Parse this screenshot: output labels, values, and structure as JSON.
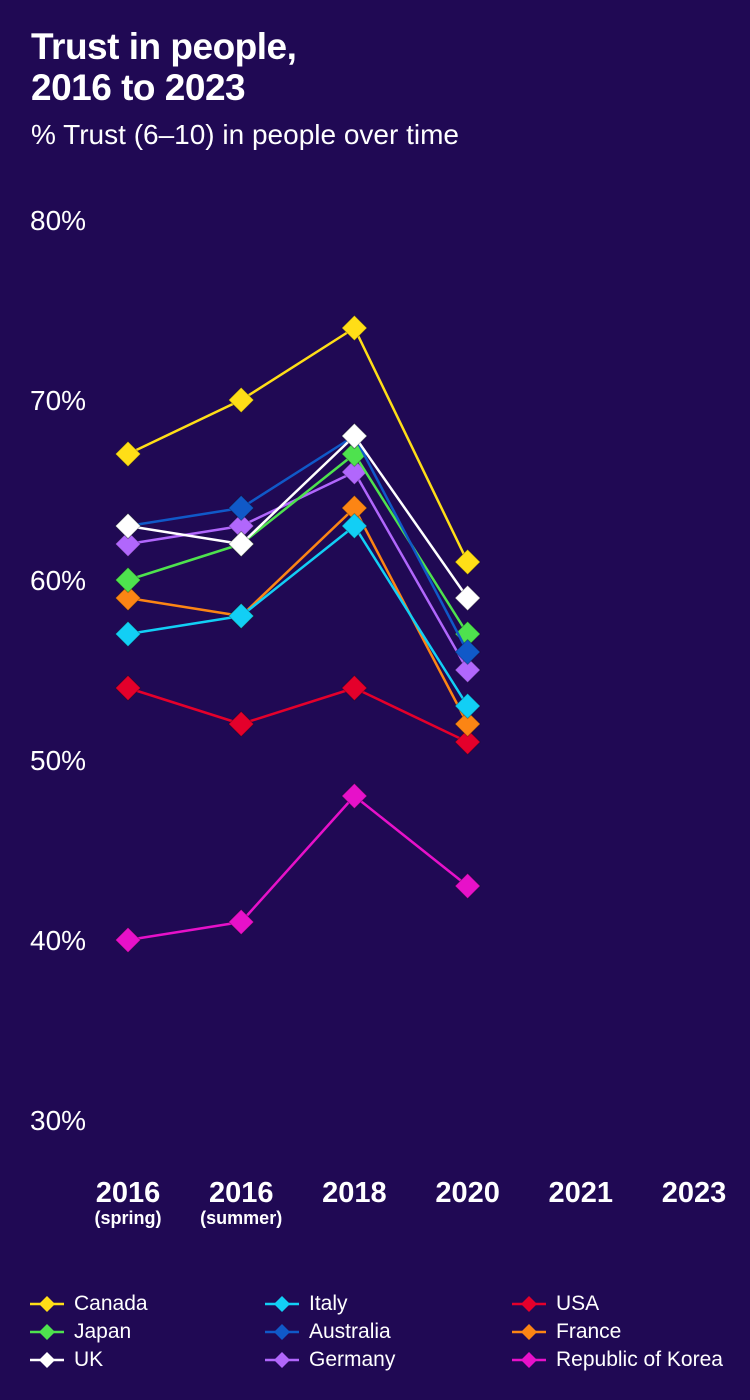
{
  "header": {
    "title_line1": "Trust in people,",
    "title_line2": "2016 to 2023",
    "subtitle": "% Trust (6–10) in people over time"
  },
  "chart_data": {
    "type": "line",
    "title": "Trust in people, 2016 to 2023",
    "subtitle": "% Trust (6–10) in people over time",
    "xlabel": "",
    "ylabel": "",
    "categories": [
      {
        "label": "2016",
        "sublabel": "(spring)"
      },
      {
        "label": "2016",
        "sublabel": "(summer)"
      },
      {
        "label": "2018",
        "sublabel": ""
      },
      {
        "label": "2020",
        "sublabel": ""
      },
      {
        "label": "2021",
        "sublabel": ""
      },
      {
        "label": "2023",
        "sublabel": ""
      }
    ],
    "ylim": [
      30,
      80
    ],
    "yticks": [
      "30%",
      "40%",
      "50%",
      "60%",
      "70%",
      "80%"
    ],
    "ytick_values": [
      30,
      40,
      50,
      60,
      70,
      80
    ],
    "grid": false,
    "legend_position": "bottom",
    "marker": "diamond",
    "series": [
      {
        "name": "Canada",
        "color": "#ffde17",
        "values": [
          67,
          70,
          74,
          61,
          null,
          null
        ]
      },
      {
        "name": "Italy",
        "color": "#12cff5",
        "values": [
          57,
          58,
          63,
          53,
          null,
          null
        ]
      },
      {
        "name": "USA",
        "color": "#e4002b",
        "values": [
          54,
          52,
          54,
          51,
          null,
          null
        ]
      },
      {
        "name": "Japan",
        "color": "#4ee24e",
        "values": [
          60,
          62,
          67,
          57,
          null,
          null
        ]
      },
      {
        "name": "Australia",
        "color": "#1059c8",
        "values": [
          63,
          64,
          68,
          56,
          null,
          null
        ]
      },
      {
        "name": "France",
        "color": "#fc8514",
        "values": [
          59,
          58,
          64,
          52,
          null,
          null
        ]
      },
      {
        "name": "UK",
        "color": "#ffffff",
        "values": [
          63,
          62,
          68,
          59,
          null,
          null
        ]
      },
      {
        "name": "Germany",
        "color": "#b167fc",
        "values": [
          62,
          63,
          66,
          55,
          null,
          null
        ]
      },
      {
        "name": "Republic of Korea",
        "color": "#e711c9",
        "values": [
          40,
          41,
          48,
          43,
          null,
          null
        ]
      }
    ],
    "draw_order": [
      "Republic of Korea",
      "USA",
      "France",
      "Italy",
      "Germany",
      "Japan",
      "Australia",
      "UK",
      "Canada"
    ]
  }
}
